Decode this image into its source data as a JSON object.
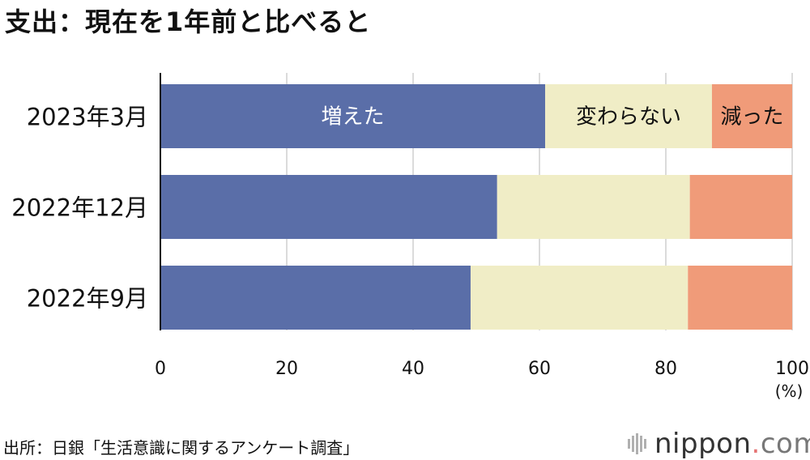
{
  "title": "支出：現在を1年前と比べると",
  "source": "出所：日銀「生活意識に関するアンケート調査」",
  "logo": {
    "name": "nippon",
    "dot": ".",
    "suffix": "com"
  },
  "chart_data": {
    "type": "bar",
    "orientation": "horizontal",
    "stacked": true,
    "categories": [
      "2023年3月",
      "2022年12月",
      "2022年9月"
    ],
    "series": [
      {
        "name": "増えた",
        "color": "#5a6ea8",
        "label_color": "#ffffff",
        "values": [
          60.9,
          53.3,
          49.1
        ]
      },
      {
        "name": "変わらない",
        "color": "#f0edc6",
        "label_color": "#111111",
        "values": [
          26.4,
          30.5,
          34.4
        ]
      },
      {
        "name": "減った",
        "color": "#f09b79",
        "label_color": "#111111",
        "values": [
          12.7,
          16.2,
          16.5
        ]
      }
    ],
    "xlim": [
      0,
      100
    ],
    "xticks": [
      0,
      20,
      40,
      60,
      80,
      100
    ],
    "xunit": "(%)",
    "grid": true,
    "series_labels_on": "2023年3月"
  }
}
